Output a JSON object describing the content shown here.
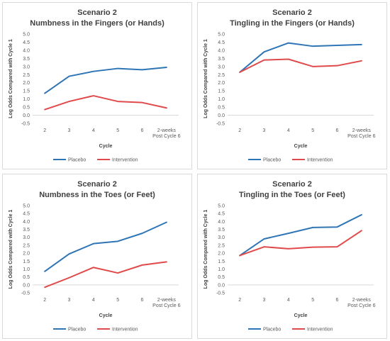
{
  "chart_data": [
    {
      "type": "line",
      "title": "Scenario 2",
      "subtitle": "Numbness in the Fingers (or Hands)",
      "xlabel": "Cycle",
      "ylabel": "Log Odds Compared with Cycle 1",
      "categories": [
        "2",
        "3",
        "4",
        "5",
        "6",
        "2-weeks\nPost Cycle 6"
      ],
      "ylim": [
        -0.5,
        5.0
      ],
      "yticks": [
        "-0.5",
        "0.0",
        "0.5",
        "1.0",
        "1.5",
        "2.0",
        "2.5",
        "3.0",
        "3.5",
        "4.0",
        "4.5",
        "5.0"
      ],
      "grid": false,
      "legend": "bottom",
      "series": [
        {
          "name": "Placebo",
          "color": "#2e75b6",
          "values": [
            1.35,
            2.4,
            2.7,
            2.88,
            2.8,
            2.95
          ]
        },
        {
          "name": "Intervention",
          "color": "#e04a4a",
          "values": [
            0.35,
            0.85,
            1.2,
            0.85,
            0.78,
            0.45
          ]
        }
      ]
    },
    {
      "type": "line",
      "title": "Scenario 2",
      "subtitle": "Tingling in the Fingers (or Hands)",
      "xlabel": "Cycle",
      "ylabel": "Log Odds Compared with Cycle 1",
      "categories": [
        "2",
        "3",
        "4",
        "5",
        "6",
        "2-weeks\nPost Cycle 6"
      ],
      "ylim": [
        -0.5,
        5.0
      ],
      "yticks": [
        "-0.5",
        "0.0",
        "0.5",
        "1.0",
        "1.5",
        "2.0",
        "2.5",
        "3.0",
        "3.5",
        "4.0",
        "4.5",
        "5.0"
      ],
      "grid": false,
      "legend": "bottom",
      "series": [
        {
          "name": "Placebo",
          "color": "#2e75b6",
          "values": [
            2.65,
            3.9,
            4.45,
            4.25,
            4.3,
            4.35
          ]
        },
        {
          "name": "Intervention",
          "color": "#e04a4a",
          "values": [
            2.65,
            3.4,
            3.45,
            3.0,
            3.05,
            3.35
          ]
        }
      ]
    },
    {
      "type": "line",
      "title": "Scenario 2",
      "subtitle": "Numbness in the Toes (or Feet)",
      "xlabel": "Cycle",
      "ylabel": "Log Odds Compared with Cycle 1",
      "categories": [
        "2",
        "3",
        "4",
        "5",
        "6",
        "2-weeks\nPost Cycle 6"
      ],
      "ylim": [
        -0.5,
        5.0
      ],
      "yticks": [
        "-0.5",
        "0.0",
        "0.5",
        "1.0",
        "1.5",
        "2.0",
        "2.5",
        "3.0",
        "3.5",
        "4.0",
        "4.5",
        "5.0"
      ],
      "grid": false,
      "legend": "bottom",
      "series": [
        {
          "name": "Placebo",
          "color": "#2e75b6",
          "values": [
            0.85,
            1.95,
            2.6,
            2.75,
            3.25,
            3.95
          ]
        },
        {
          "name": "Intervention",
          "color": "#e04a4a",
          "values": [
            -0.15,
            0.45,
            1.1,
            0.75,
            1.25,
            1.45
          ]
        }
      ]
    },
    {
      "type": "line",
      "title": "Scenario 2",
      "subtitle": "Tingling in the Toes (or Feet)",
      "xlabel": "Cycle",
      "ylabel": "Log Odds Compared with Cycle 1",
      "categories": [
        "2",
        "3",
        "4",
        "5",
        "6",
        "2-weeks\nPost Cycle 6"
      ],
      "ylim": [
        -0.5,
        5.0
      ],
      "yticks": [
        "-0.5",
        "0.0",
        "0.5",
        "1.0",
        "1.5",
        "2.0",
        "2.5",
        "3.0",
        "3.5",
        "4.0",
        "4.5",
        "5.0"
      ],
      "grid": false,
      "legend": "bottom",
      "series": [
        {
          "name": "Placebo",
          "color": "#2e75b6",
          "values": [
            1.85,
            2.9,
            3.25,
            3.62,
            3.65,
            4.42
          ]
        },
        {
          "name": "Intervention",
          "color": "#e04a4a",
          "values": [
            1.85,
            2.4,
            2.28,
            2.38,
            2.4,
            3.42
          ]
        }
      ]
    }
  ]
}
